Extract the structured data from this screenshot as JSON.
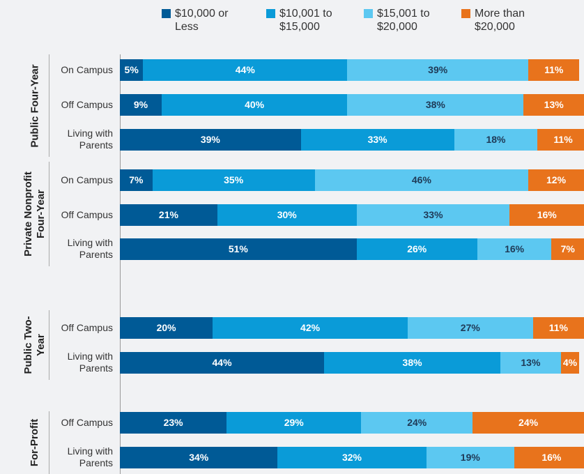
{
  "chart_data": {
    "type": "bar",
    "orientation": "horizontal",
    "stacked": true,
    "series": [
      {
        "name": "$10,000 or Less",
        "color": "#005a96"
      },
      {
        "name": "$10,001 to $15,000",
        "color": "#0a9bd8"
      },
      {
        "name": "$15,001 to $20,000",
        "color": "#5cc8f1"
      },
      {
        "name": "More than $20,000",
        "color": "#e8731c"
      }
    ],
    "groups": [
      {
        "name": "Public Four-Year",
        "rows": [
          {
            "label": "On Campus",
            "values": [
              5,
              44,
              39,
              11
            ],
            "value_labels": [
              "5%",
              "44%",
              "39%",
              "11%"
            ]
          },
          {
            "label": "Off Campus",
            "values": [
              9,
              40,
              38,
              13
            ],
            "value_labels": [
              "9%",
              "40%",
              "38%",
              "13%"
            ]
          },
          {
            "label": "Living with Parents",
            "values": [
              39,
              33,
              18,
              11
            ],
            "value_labels": [
              "39%",
              "33%",
              "18%",
              "11%"
            ]
          }
        ]
      },
      {
        "name": "Private Nonprofit Four-Year",
        "rows": [
          {
            "label": "On Campus",
            "values": [
              7,
              35,
              46,
              12
            ],
            "value_labels": [
              "7%",
              "35%",
              "46%",
              "12%"
            ]
          },
          {
            "label": "Off Campus",
            "values": [
              21,
              30,
              33,
              16
            ],
            "value_labels": [
              "21%",
              "30%",
              "33%",
              "16%"
            ]
          },
          {
            "label": "Living with Parents",
            "values": [
              51,
              26,
              16,
              7
            ],
            "value_labels": [
              "51%",
              "26%",
              "16%",
              "7%"
            ]
          }
        ]
      },
      {
        "name": "Public Two-Year",
        "rows": [
          {
            "label": "Off Campus",
            "values": [
              20,
              42,
              27,
              11
            ],
            "value_labels": [
              "20%",
              "42%",
              "27%",
              "11%"
            ]
          },
          {
            "label": "Living with Parents",
            "values": [
              44,
              38,
              13,
              4
            ],
            "value_labels": [
              "44%",
              "38%",
              "13%",
              "4%"
            ]
          }
        ]
      },
      {
        "name": "For-Profit",
        "rows": [
          {
            "label": "Off Campus",
            "values": [
              23,
              29,
              24,
              24
            ],
            "value_labels": [
              "23%",
              "29%",
              "24%",
              "24%"
            ]
          },
          {
            "label": "Living with Parents",
            "values": [
              34,
              32,
              19,
              16
            ],
            "value_labels": [
              "34%",
              "32%",
              "19%",
              "16%"
            ]
          }
        ]
      }
    ],
    "xlim": [
      0,
      100
    ]
  }
}
